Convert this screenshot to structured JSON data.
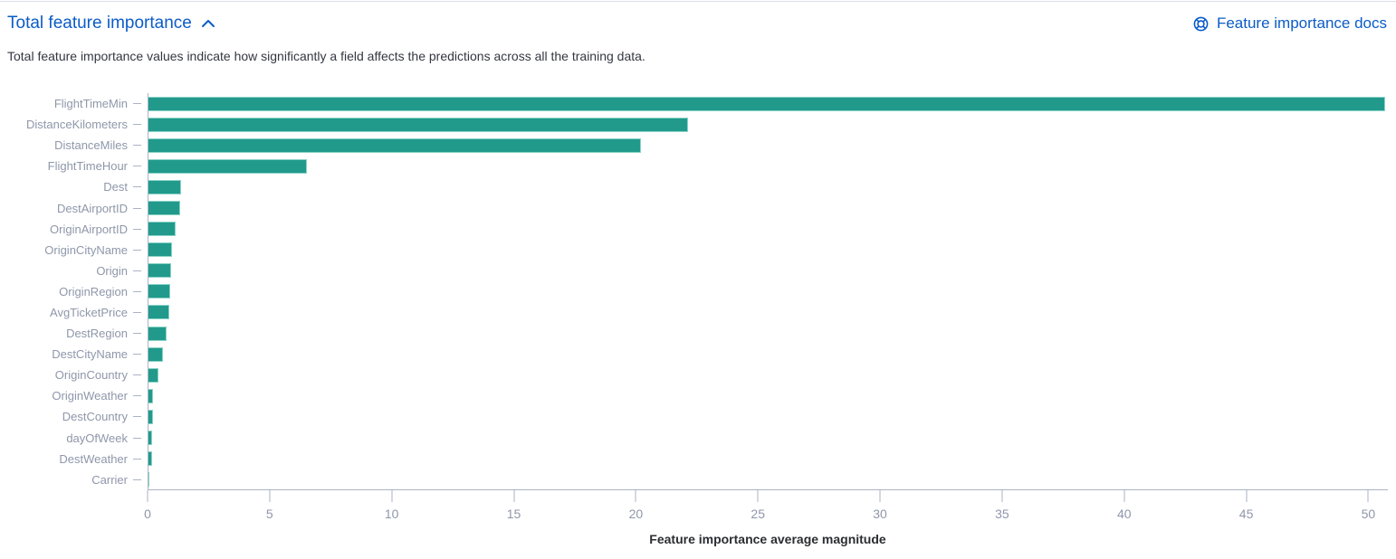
{
  "panel": {
    "title": "Total feature importance",
    "docs_link_label": "Feature importance docs",
    "description": "Total feature importance values indicate how significantly a field affects the predictions across all the training data."
  },
  "icons": {
    "title_collapse": "chevron-up-icon",
    "docs": "life-ring-documentation-icon"
  },
  "colors": {
    "link_blue": "#0b5cc7",
    "bar_fill": "#219a8c",
    "bar_stroke": "#8ad3c6",
    "axis_line": "#aab3c4",
    "axis_text": "#8e97aa",
    "body_text": "#343741",
    "top_divider": "#d9dfeb"
  },
  "chart_data": {
    "type": "bar",
    "orientation": "horizontal",
    "title": "",
    "xlabel": "Feature importance average magnitude",
    "ylabel": "",
    "categories": [
      "FlightTimeMin",
      "DistanceKilometers",
      "DistanceMiles",
      "FlightTimeHour",
      "Dest",
      "DestAirportID",
      "OriginAirportID",
      "OriginCityName",
      "Origin",
      "OriginRegion",
      "AvgTicketPrice",
      "DestRegion",
      "DestCityName",
      "OriginCountry",
      "OriginWeather",
      "DestCountry",
      "dayOfWeek",
      "DestWeather",
      "Carrier"
    ],
    "values": [
      50.7,
      22.1,
      20.2,
      6.5,
      1.35,
      1.3,
      1.1,
      0.97,
      0.94,
      0.88,
      0.85,
      0.73,
      0.6,
      0.41,
      0.2,
      0.17,
      0.16,
      0.13,
      0.05
    ],
    "xlim": [
      0,
      50.8
    ],
    "xticks": [
      0,
      5,
      10,
      15,
      20,
      25,
      30,
      35,
      40,
      45,
      50
    ],
    "grid": false,
    "legend": false,
    "bar_color": "#219a8c"
  }
}
